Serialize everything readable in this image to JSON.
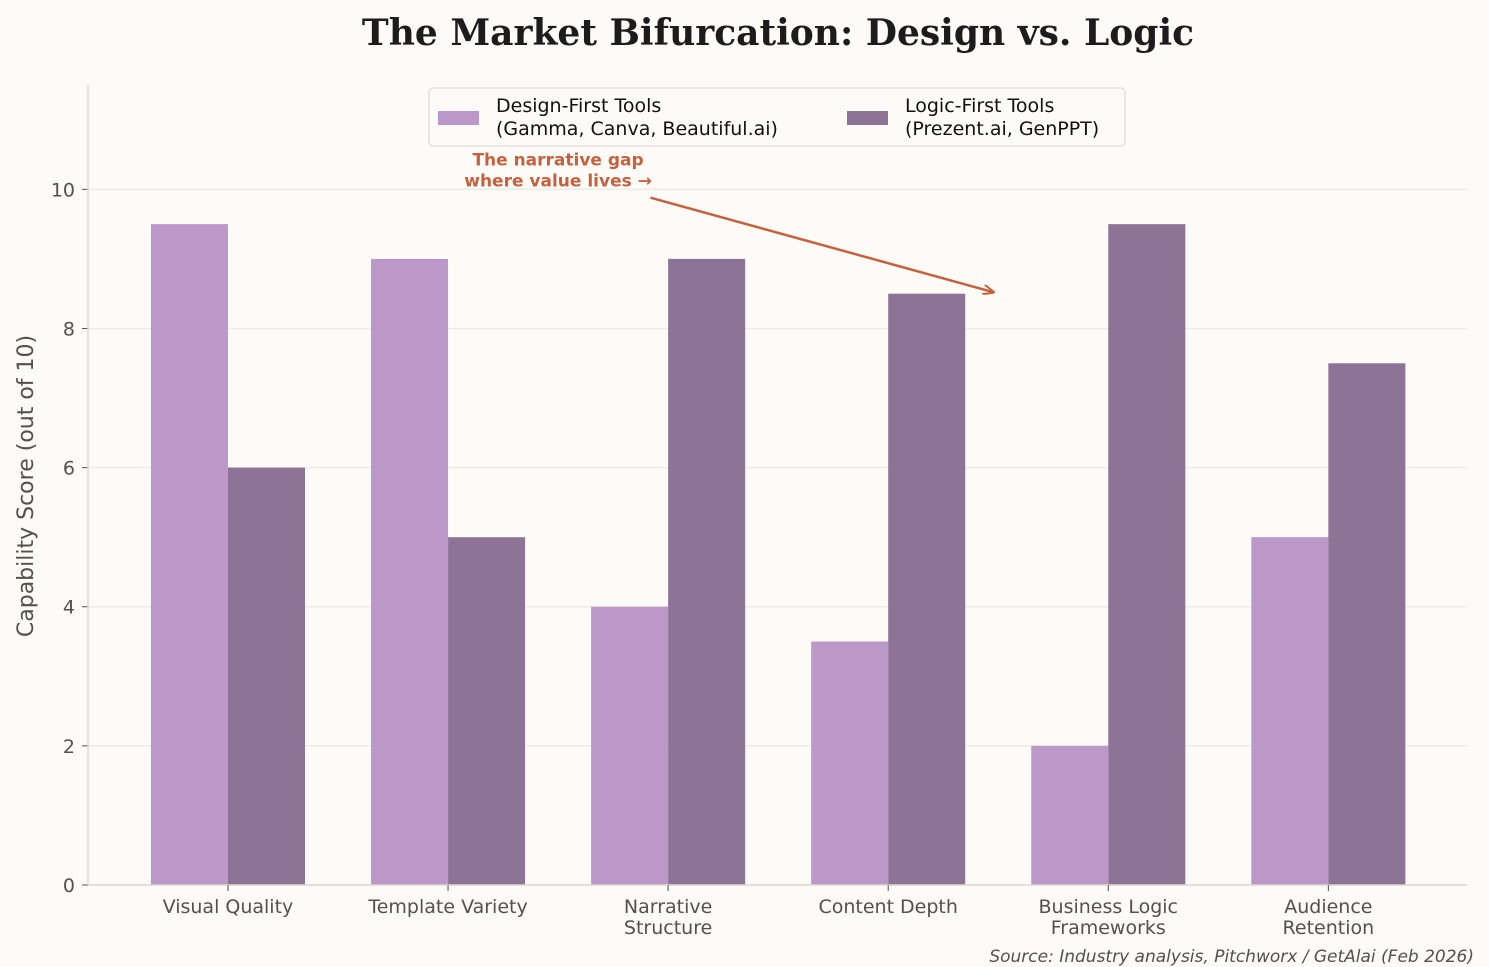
{
  "chart_data": {
    "type": "bar",
    "title": "The Market Bifurcation: Design vs. Logic",
    "xlabel": "",
    "ylabel": "Capability Score (out of 10)",
    "ylim": [
      0,
      11.5
    ],
    "yticks": [
      0,
      2,
      4,
      6,
      8,
      10
    ],
    "grid": "horizontal",
    "legend_placement": "top-center",
    "categories": [
      [
        "Visual Quality"
      ],
      [
        "Template Variety"
      ],
      [
        "Narrative",
        "Structure"
      ],
      [
        "Content Depth"
      ],
      [
        "Business Logic",
        "Frameworks"
      ],
      [
        "Audience",
        "Retention"
      ]
    ],
    "series": [
      {
        "name": [
          "Design-First Tools",
          "(Gamma, Canva, Beautiful.ai)"
        ],
        "color": "#bc98c8",
        "values": [
          9.5,
          9,
          4,
          3.5,
          2,
          5
        ]
      },
      {
        "name": [
          "Logic-First Tools",
          "(Prezent.ai, GenPPT)"
        ],
        "color": "#8d7496",
        "values": [
          6,
          5,
          9,
          8.5,
          9.5,
          7.5
        ]
      }
    ],
    "annotation": {
      "text": [
        "The narrative gap",
        "where value lives →"
      ],
      "text_at": [
        1.5,
        10.1
      ],
      "arrow_from": [
        1.92,
        9.88
      ],
      "arrow_to": [
        3.48,
        8.52
      ],
      "color": "#c4623f"
    },
    "source": "Source: Industry analysis, Pitchworx / GetAlai (Feb 2026)"
  }
}
